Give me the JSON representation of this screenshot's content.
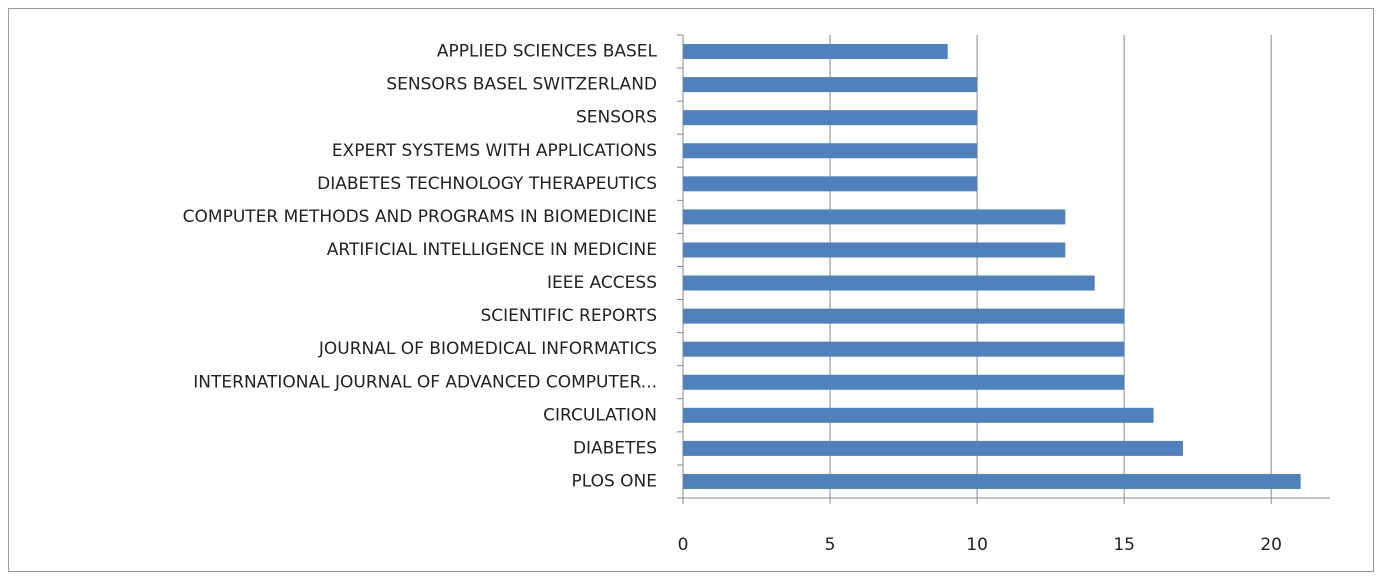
{
  "chart_data": {
    "type": "bar",
    "orientation": "horizontal",
    "categories": [
      "APPLIED SCIENCES BASEL",
      "SENSORS BASEL SWITZERLAND",
      "SENSORS",
      "EXPERT SYSTEMS WITH APPLICATIONS",
      "DIABETES TECHNOLOGY THERAPEUTICS",
      "COMPUTER METHODS AND PROGRAMS IN BIOMEDICINE",
      "ARTIFICIAL INTELLIGENCE IN MEDICINE",
      "IEEE ACCESS",
      "SCIENTIFIC REPORTS",
      "JOURNAL OF BIOMEDICAL INFORMATICS",
      "INTERNATIONAL JOURNAL OF ADVANCED COMPUTER...",
      "CIRCULATION",
      "DIABETES",
      "PLOS ONE"
    ],
    "values": [
      9,
      10,
      10,
      10,
      10,
      13,
      13,
      14,
      15,
      15,
      15,
      16,
      17,
      21
    ],
    "color": "#4f81bd",
    "xlim": [
      0,
      22
    ],
    "xticks": [
      0,
      5,
      10,
      15,
      20
    ],
    "grid": true
  }
}
